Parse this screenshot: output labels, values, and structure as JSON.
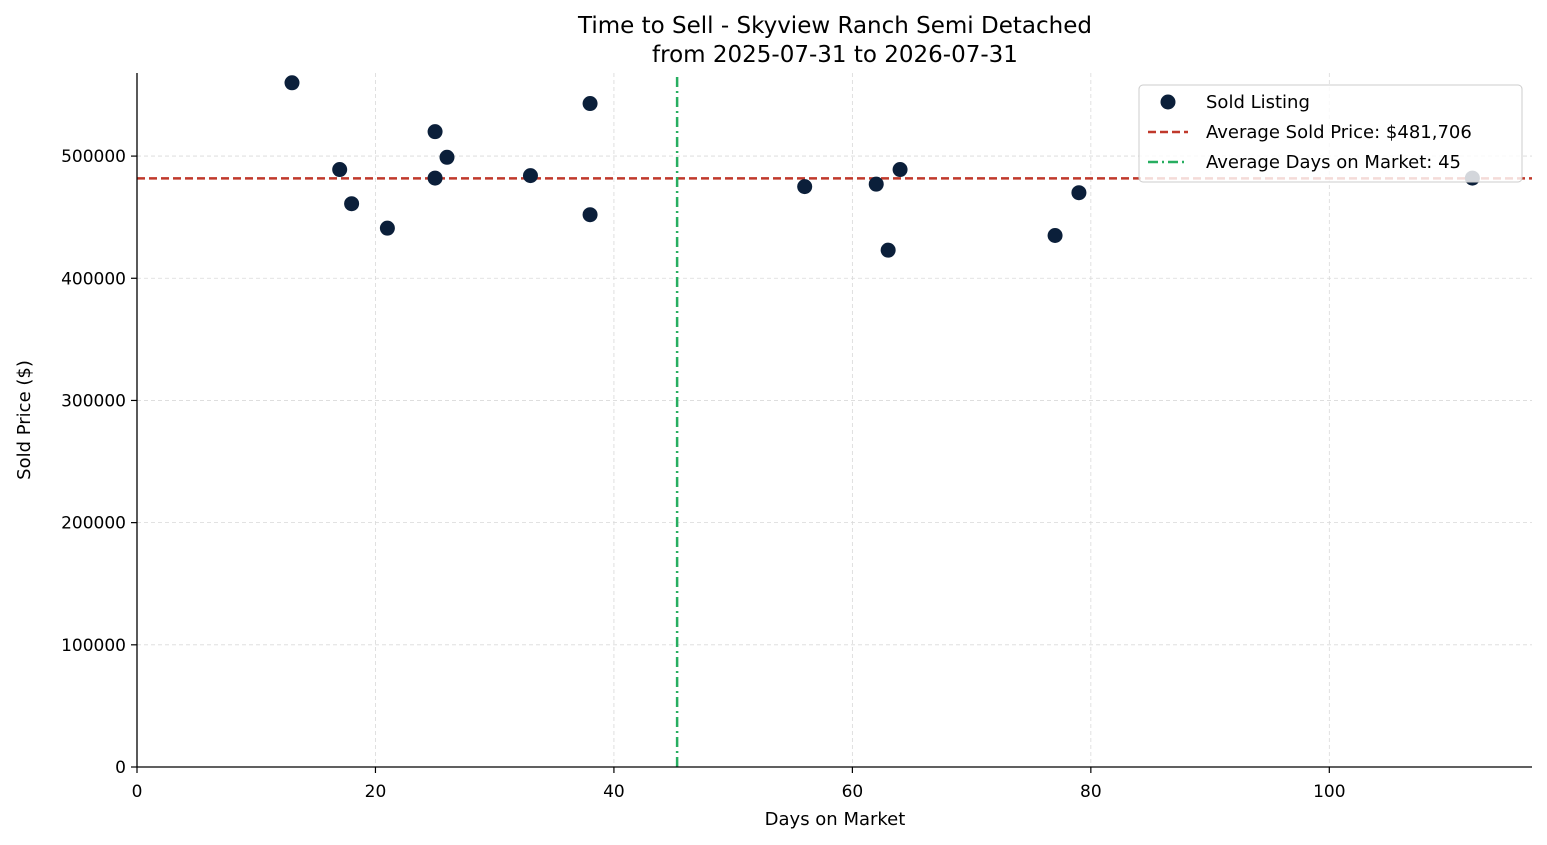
{
  "chart_data": {
    "type": "scatter",
    "title": "Time to Sell - Skyview Ranch Semi Detached",
    "subtitle": "from 2025-07-31 to 2026-07-31",
    "xlabel": "Days on Market",
    "ylabel": "Sold Price ($)",
    "xlim": [
      0,
      117
    ],
    "ylim": [
      0,
      568000
    ],
    "x_ticks": [
      0,
      20,
      40,
      60,
      80,
      100
    ],
    "x_tick_labels": [
      "0",
      "20",
      "40",
      "60",
      "80",
      "100"
    ],
    "y_ticks": [
      0,
      100000,
      200000,
      300000,
      400000,
      500000
    ],
    "y_tick_labels": [
      "0",
      "100000",
      "200000",
      "300000",
      "400000",
      "500000"
    ],
    "grid": true,
    "legend_position": "top-right",
    "series": [
      {
        "name": "Sold Listing",
        "color": "#0b1f3a",
        "points": [
          {
            "x": 13,
            "y": 560000
          },
          {
            "x": 17,
            "y": 489000
          },
          {
            "x": 18,
            "y": 461000
          },
          {
            "x": 21,
            "y": 441000
          },
          {
            "x": 25,
            "y": 520000
          },
          {
            "x": 25,
            "y": 482000
          },
          {
            "x": 26,
            "y": 499000
          },
          {
            "x": 33,
            "y": 484000
          },
          {
            "x": 38,
            "y": 543000
          },
          {
            "x": 38,
            "y": 452000
          },
          {
            "x": 56,
            "y": 475000
          },
          {
            "x": 62,
            "y": 477000
          },
          {
            "x": 63,
            "y": 423000
          },
          {
            "x": 64,
            "y": 489000
          },
          {
            "x": 77,
            "y": 435000
          },
          {
            "x": 79,
            "y": 470000
          },
          {
            "x": 112,
            "y": 482000
          }
        ]
      }
    ],
    "reference_lines": [
      {
        "name": "Average Sold Price: $481,706",
        "orientation": "horizontal",
        "value": 481706,
        "color": "#c0392b",
        "style": "dashed"
      },
      {
        "name": "Average Days on Market: 45",
        "orientation": "vertical",
        "value": 45.3,
        "color": "#27ae60",
        "style": "dashdot"
      }
    ]
  }
}
